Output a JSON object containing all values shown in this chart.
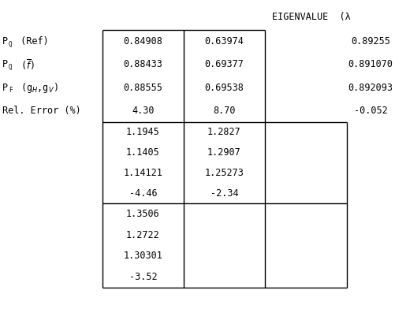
{
  "eigenvalue_label": "EIGENVALUE  (λ",
  "section1": {
    "col1": [
      "0.84908",
      "0.88433",
      "0.88555",
      "4.30"
    ],
    "col2": [
      "0.63974",
      "0.69377",
      "0.69538",
      "8.70"
    ],
    "col3": [
      "0.89255",
      "0.891070",
      "0.892093",
      "-0.052"
    ]
  },
  "section2": {
    "col1": [
      "1.1945",
      "1.1405",
      "1.14121",
      "-4.46"
    ],
    "col2": [
      "1.2827",
      "1.2907",
      "1.25273",
      "-2.34"
    ]
  },
  "section3": {
    "col1": [
      "1.3506",
      "1.2722",
      "1.30301",
      "-3.52"
    ]
  },
  "bg_color": "#ffffff",
  "text_color": "#000000",
  "font_size": 8.5
}
